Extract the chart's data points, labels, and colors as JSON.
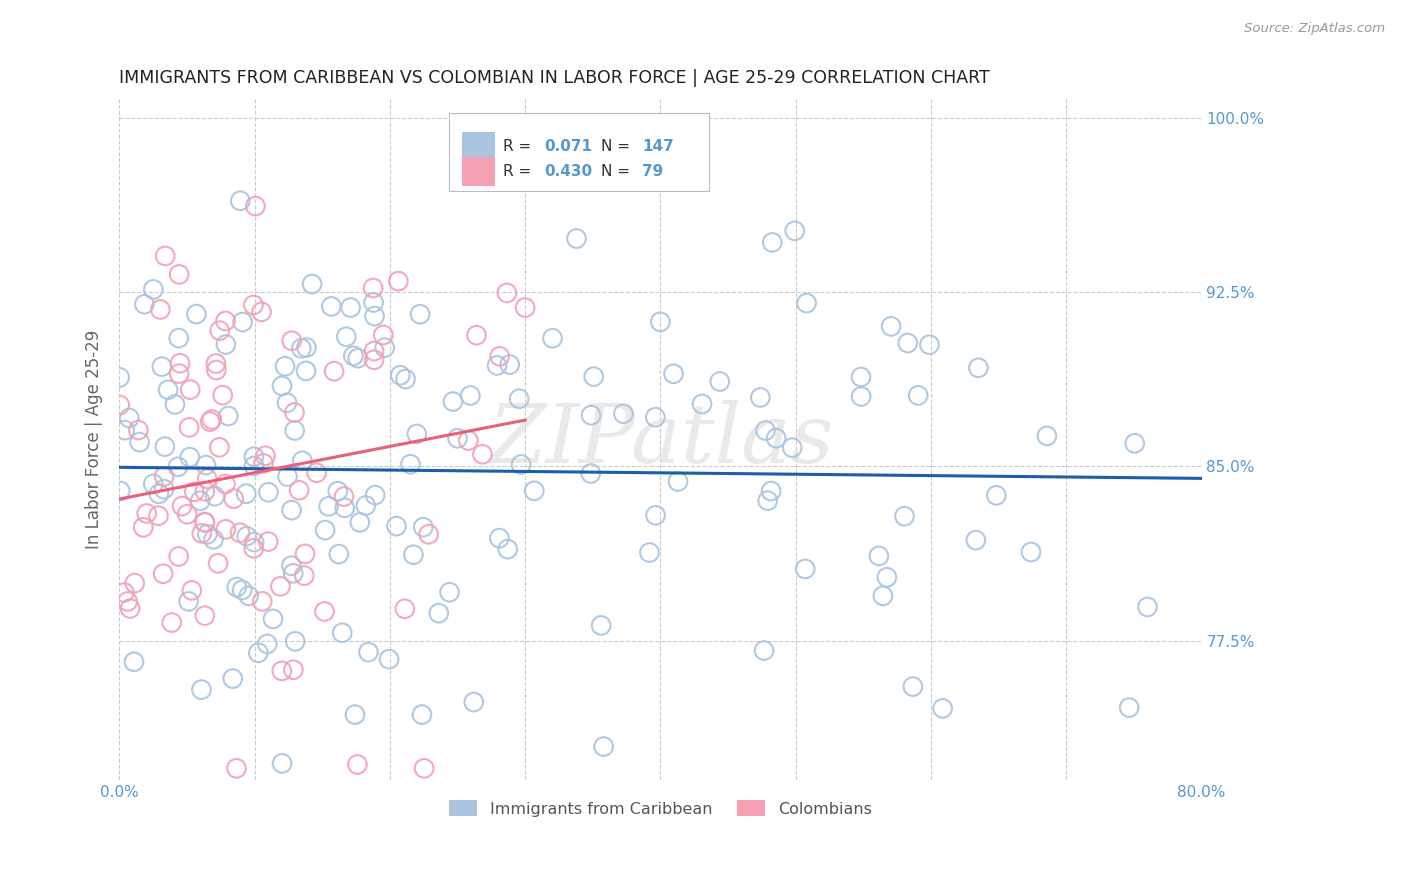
{
  "title": "IMMIGRANTS FROM CARIBBEAN VS COLOMBIAN IN LABOR FORCE | AGE 25-29 CORRELATION CHART",
  "source": "Source: ZipAtlas.com",
  "ylabel": "In Labor Force | Age 25-29",
  "x_min": 0.0,
  "x_max": 0.8,
  "y_min": 0.715,
  "y_max": 1.008,
  "x_ticks": [
    0.0,
    0.1,
    0.2,
    0.3,
    0.4,
    0.5,
    0.6,
    0.7,
    0.8
  ],
  "y_ticks_right": [
    0.775,
    0.85,
    0.925,
    1.0
  ],
  "y_tick_labels_right": [
    "77.5%",
    "85.0%",
    "92.5%",
    "100.0%"
  ],
  "blue_R": 0.071,
  "blue_N": 147,
  "pink_R": 0.43,
  "pink_N": 79,
  "blue_color": "#a8c4e0",
  "pink_color": "#f4a0b5",
  "blue_line_color": "#1a5fa8",
  "pink_line_color": "#e8607a",
  "legend_label_blue": "Immigrants from Caribbean",
  "legend_label_pink": "Colombians",
  "watermark": "ZIPatlas",
  "background_color": "#ffffff",
  "grid_color": "#cccccc",
  "title_color": "#222222",
  "axis_label_color": "#5599cc",
  "blue_seed": 7,
  "pink_seed": 13
}
